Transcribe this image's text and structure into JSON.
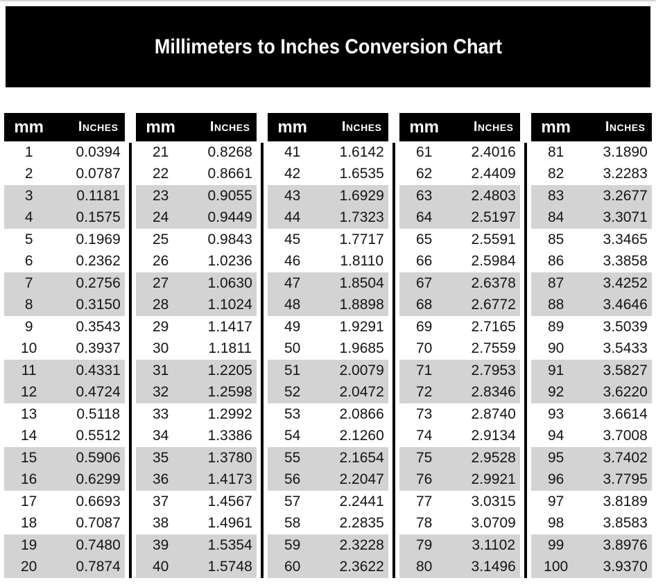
{
  "title": "Millimeters to Inches Conversion Chart",
  "column_headers": {
    "mm": "mm",
    "inches": "Inches"
  },
  "colors": {
    "page_bg": "#ffffff",
    "banner_bg": "#000000",
    "banner_text": "#ffffff",
    "table_header_bg": "#000000",
    "table_header_text": "#ffffff",
    "row_bg": "#ffffff",
    "row_alt_bg": "#d3d3d3",
    "body_text": "#141414",
    "divider": "#000000"
  },
  "tables": [
    {
      "rows": [
        [
          "1",
          "0.0394"
        ],
        [
          "2",
          "0.0787"
        ],
        [
          "3",
          "0.1181"
        ],
        [
          "4",
          "0.1575"
        ],
        [
          "5",
          "0.1969"
        ],
        [
          "6",
          "0.2362"
        ],
        [
          "7",
          "0.2756"
        ],
        [
          "8",
          "0.3150"
        ],
        [
          "9",
          "0.3543"
        ],
        [
          "10",
          "0.3937"
        ],
        [
          "11",
          "0.4331"
        ],
        [
          "12",
          "0.4724"
        ],
        [
          "13",
          "0.5118"
        ],
        [
          "14",
          "0.5512"
        ],
        [
          "15",
          "0.5906"
        ],
        [
          "16",
          "0.6299"
        ],
        [
          "17",
          "0.6693"
        ],
        [
          "18",
          "0.7087"
        ],
        [
          "19",
          "0.7480"
        ],
        [
          "20",
          "0.7874"
        ]
      ]
    },
    {
      "rows": [
        [
          "21",
          "0.8268"
        ],
        [
          "22",
          "0.8661"
        ],
        [
          "23",
          "0.9055"
        ],
        [
          "24",
          "0.9449"
        ],
        [
          "25",
          "0.9843"
        ],
        [
          "26",
          "1.0236"
        ],
        [
          "27",
          "1.0630"
        ],
        [
          "28",
          "1.1024"
        ],
        [
          "29",
          "1.1417"
        ],
        [
          "30",
          "1.1811"
        ],
        [
          "31",
          "1.2205"
        ],
        [
          "32",
          "1.2598"
        ],
        [
          "33",
          "1.2992"
        ],
        [
          "34",
          "1.3386"
        ],
        [
          "35",
          "1.3780"
        ],
        [
          "36",
          "1.4173"
        ],
        [
          "37",
          "1.4567"
        ],
        [
          "38",
          "1.4961"
        ],
        [
          "39",
          "1.5354"
        ],
        [
          "40",
          "1.5748"
        ]
      ]
    },
    {
      "rows": [
        [
          "41",
          "1.6142"
        ],
        [
          "42",
          "1.6535"
        ],
        [
          "43",
          "1.6929"
        ],
        [
          "44",
          "1.7323"
        ],
        [
          "45",
          "1.7717"
        ],
        [
          "46",
          "1.8110"
        ],
        [
          "47",
          "1.8504"
        ],
        [
          "48",
          "1.8898"
        ],
        [
          "49",
          "1.9291"
        ],
        [
          "50",
          "1.9685"
        ],
        [
          "51",
          "2.0079"
        ],
        [
          "52",
          "2.0472"
        ],
        [
          "53",
          "2.0866"
        ],
        [
          "54",
          "2.1260"
        ],
        [
          "55",
          "2.1654"
        ],
        [
          "56",
          "2.2047"
        ],
        [
          "57",
          "2.2441"
        ],
        [
          "58",
          "2.2835"
        ],
        [
          "59",
          "2.3228"
        ],
        [
          "60",
          "2.3622"
        ]
      ]
    },
    {
      "rows": [
        [
          "61",
          "2.4016"
        ],
        [
          "62",
          "2.4409"
        ],
        [
          "63",
          "2.4803"
        ],
        [
          "64",
          "2.5197"
        ],
        [
          "65",
          "2.5591"
        ],
        [
          "66",
          "2.5984"
        ],
        [
          "67",
          "2.6378"
        ],
        [
          "68",
          "2.6772"
        ],
        [
          "69",
          "2.7165"
        ],
        [
          "70",
          "2.7559"
        ],
        [
          "71",
          "2.7953"
        ],
        [
          "72",
          "2.8346"
        ],
        [
          "73",
          "2.8740"
        ],
        [
          "74",
          "2.9134"
        ],
        [
          "75",
          "2.9528"
        ],
        [
          "76",
          "2.9921"
        ],
        [
          "77",
          "3.0315"
        ],
        [
          "78",
          "3.0709"
        ],
        [
          "79",
          "3.1102"
        ],
        [
          "80",
          "3.1496"
        ]
      ]
    },
    {
      "rows": [
        [
          "81",
          "3.1890"
        ],
        [
          "82",
          "3.2283"
        ],
        [
          "83",
          "3.2677"
        ],
        [
          "84",
          "3.3071"
        ],
        [
          "85",
          "3.3465"
        ],
        [
          "86",
          "3.3858"
        ],
        [
          "87",
          "3.4252"
        ],
        [
          "88",
          "3.4646"
        ],
        [
          "89",
          "3.5039"
        ],
        [
          "90",
          "3.5433"
        ],
        [
          "91",
          "3.5827"
        ],
        [
          "92",
          "3.6220"
        ],
        [
          "93",
          "3.6614"
        ],
        [
          "94",
          "3.7008"
        ],
        [
          "95",
          "3.7402"
        ],
        [
          "96",
          "3.7795"
        ],
        [
          "97",
          "3.8189"
        ],
        [
          "98",
          "3.8583"
        ],
        [
          "99",
          "3.8976"
        ],
        [
          "100",
          "3.9370"
        ]
      ]
    }
  ]
}
